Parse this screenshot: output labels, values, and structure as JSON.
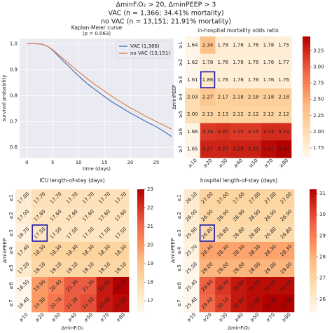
{
  "suptitle": [
    "ΔminFᵢO₂ > 20, ΔminPEEP > 3",
    "VAC (n = 1,366; 34.41% mortality)",
    "no VAC (n = 13,151; 21.91% mortality)"
  ],
  "chart_data": [
    {
      "type": "line",
      "title": "Kaplan-Meier curve",
      "subtitle": "(p = 0.063)",
      "xlabel": "time (days)",
      "ylabel": "survival probability",
      "x": [
        0,
        1,
        2,
        3,
        4,
        5,
        6,
        7,
        8,
        9,
        10,
        11,
        12,
        13,
        14,
        15,
        16,
        17,
        18,
        19,
        20,
        21,
        22,
        23,
        24,
        25,
        26,
        27,
        28
      ],
      "series": [
        {
          "name": "VAC (1,366)",
          "color": "#4c72b0",
          "values": [
            1,
            1,
            1,
            0.998,
            0.99,
            0.975,
            0.955,
            0.935,
            0.915,
            0.895,
            0.876,
            0.858,
            0.841,
            0.826,
            0.811,
            0.796,
            0.782,
            0.769,
            0.757,
            0.745,
            0.733,
            0.722,
            0.711,
            0.7,
            0.69,
            0.68,
            0.668,
            0.655,
            0.642
          ]
        },
        {
          "name": "no VAC (13,151)",
          "color": "#dd8452",
          "values": [
            1,
            1,
            1,
            0.997,
            0.99,
            0.977,
            0.96,
            0.943,
            0.926,
            0.909,
            0.892,
            0.876,
            0.86,
            0.845,
            0.831,
            0.817,
            0.803,
            0.79,
            0.777,
            0.765,
            0.753,
            0.742,
            0.731,
            0.72,
            0.71,
            0.7,
            0.69,
            0.68,
            0.67
          ]
        }
      ],
      "xlim": [
        -1.4,
        28.4
      ],
      "ylim": [
        0.56,
        1.02
      ],
      "xticks": [
        0,
        5,
        10,
        15,
        20,
        25
      ],
      "yticks": [
        0.6,
        0.7,
        0.8,
        0.9,
        {
          "value": 1,
          "label": "1.0"
        }
      ],
      "grid": true,
      "legend": "upper right"
    },
    {
      "type": "heatmap",
      "title": "in-hospital mortality odds ratio",
      "ylabel": "ΔminPEEP",
      "x_categories": [
        "≥10",
        "≥20",
        "≥30",
        "≥40",
        "≥50",
        "≥70",
        "≥80"
      ],
      "y_categories": [
        "≥1",
        "≥2",
        "≥3",
        "≥4",
        "≥5",
        "≥6",
        "≥7"
      ],
      "values": [
        [
          1.64,
          2.34,
          1.78,
          1.76,
          1.76,
          1.78,
          1.75
        ],
        [
          1.62,
          1.78,
          1.76,
          1.76,
          1.76,
          1.76,
          1.77
        ],
        [
          1.61,
          1.86,
          1.76,
          1.76,
          1.76,
          1.76,
          1.76
        ],
        [
          2.03,
          2.27,
          2.17,
          2.18,
          2.18,
          2.18,
          2.18
        ],
        [
          2,
          2.13,
          2.13,
          2.12,
          2.12,
          2.12,
          2.12
        ],
        [
          1.66,
          3.16,
          3.2,
          3.15,
          3.15,
          3.23,
          3.23
        ],
        [
          1.65,
          3.27,
          3.27,
          3.29,
          3.29,
          3.41,
          3.47
        ]
      ],
      "value_labels": [
        [
          "1.64",
          "2.34",
          "1.78",
          "1.76",
          "1.76",
          "1.78",
          "1.75"
        ],
        [
          "1.62",
          "1.78",
          "1.76",
          "1.76",
          "1.76",
          "1.76",
          "1.77"
        ],
        [
          "1.61",
          "1.86",
          "1.76",
          "1.76",
          "1.76",
          "1.76",
          "1.76"
        ],
        [
          "2.03",
          "2.27",
          "2.17",
          "2.18",
          "2.18",
          "2.18",
          "2.18"
        ],
        [
          "2.00",
          "2.13",
          "2.13",
          "2.12",
          "2.12",
          "2.12",
          "2.12"
        ],
        [
          "1.66",
          "3.16",
          "3.20",
          "3.15",
          "3.15",
          "3.23",
          "3.23"
        ],
        [
          "1.65",
          "3.27",
          "3.27",
          "3.29",
          "3.29",
          "3.41",
          "3.47"
        ]
      ],
      "clim": [
        1.6,
        3.47
      ],
      "cticks": [
        1.75,
        {
          "value": 2,
          "label": "2.00"
        },
        2.25,
        {
          "value": 2.5,
          "label": "2.50"
        },
        2.75,
        {
          "value": 3,
          "label": "3.00"
        },
        3.25
      ],
      "highlight_cell": [
        2,
        1
      ],
      "value_label_rotation": 0
    },
    {
      "type": "heatmap",
      "title": "ICU length-of-stay (days)",
      "xlabel": "ΔminFᵢO₂",
      "ylabel": "ΔminPEEP",
      "x_categories": [
        "≥10",
        "≥20",
        "≥30",
        "≥40",
        "≥50",
        "≥70",
        "≥80"
      ],
      "y_categories": [
        "≥1",
        "≥2",
        "≥3",
        "≥4",
        "≥5",
        "≥6",
        "≥7"
      ],
      "values": [
        [
          17,
          17.7,
          17.7,
          17.7,
          17.7,
          17.7,
          17.7
        ],
        [
          17,
          17.6,
          17.6,
          17.6,
          17.6,
          17.6,
          17.6
        ],
        [
          16.7,
          17.5,
          17.5,
          17.5,
          17.5,
          17.5,
          17.5
        ],
        [
          17.4,
          18.3,
          18.3,
          18.3,
          18.3,
          18.3,
          18.3
        ],
        [
          17.2,
          18.1,
          18.1,
          18.1,
          18.1,
          18.1,
          18.1
        ],
        [
          16.5,
          19.9,
          20.4,
          21.3,
          21.3,
          22.5,
          23
        ],
        [
          16.4,
          19.9,
          20.7,
          21.3,
          21.5,
          22.5,
          22.8
        ]
      ],
      "value_labels": [
        [
          "17.00",
          "17.70",
          "17.70",
          "17.70",
          "17.70",
          "17.70",
          "17.70"
        ],
        [
          "17.00",
          "17.60",
          "17.60",
          "17.60",
          "17.60",
          "17.60",
          "17.60"
        ],
        [
          "16.70",
          "17.50",
          "17.50",
          "17.50",
          "17.50",
          "17.50",
          "17.50"
        ],
        [
          "17.40",
          "18.30",
          "18.30",
          "18.30",
          "18.30",
          "18.30",
          "18.30"
        ],
        [
          "17.20",
          "18.10",
          "18.10",
          "18.10",
          "18.10",
          "18.10",
          "18.10"
        ],
        [
          "16.50",
          "19.90",
          "20.40",
          "21.30",
          "21.30",
          "22.50",
          "23.00"
        ],
        [
          "16.40",
          "19.90",
          "20.70",
          "21.30",
          "21.50",
          "22.50",
          "22.80"
        ]
      ],
      "clim": [
        16.4,
        23
      ],
      "cticks": [
        17,
        18,
        19,
        20,
        21,
        22,
        23
      ],
      "highlight_cell": [
        2,
        1
      ],
      "value_label_rotation": -45
    },
    {
      "type": "heatmap",
      "title": "hospital length-of-stay (days)",
      "xlabel": "ΔminFᵢO₂",
      "ylabel": "ΔminPEEP",
      "x_categories": [
        "≥10",
        "≥20",
        "≥30",
        "≥40",
        "≥50",
        "≥70",
        "≥80"
      ],
      "y_categories": [
        "≥1",
        "≥2",
        "≥3",
        "≥4",
        "≥5",
        "≥6",
        "≥7"
      ],
      "values": [
        [
          26.1,
          27,
          27,
          27,
          27,
          27,
          27
        ],
        [
          26,
          26.9,
          26.9,
          26.9,
          26.9,
          26.9,
          26.9
        ],
        [
          25.9,
          26.8,
          26.8,
          26.8,
          26.8,
          26.8,
          26.8
        ],
        [
          25.7,
          28.3,
          28.3,
          28.3,
          28.3,
          28.3,
          28.3
        ],
        [
          25.5,
          28,
          28,
          28,
          28,
          28,
          28
        ],
        [
          25.4,
          29.6,
          30.3,
          30.8,
          31,
          31,
          31
        ],
        [
          25.4,
          29.4,
          30.1,
          30.8,
          31,
          31.2,
          31.2
        ]
      ],
      "value_labels": [
        [
          "26.10",
          "27.00",
          "27.00",
          "27.00",
          "27.00",
          "27.00",
          "27.00"
        ],
        [
          "26.00",
          "26.90",
          "26.90",
          "26.90",
          "26.90",
          "26.90",
          "26.90"
        ],
        [
          "25.90",
          "26.80",
          "26.80",
          "26.80",
          "26.80",
          "26.80",
          "26.80"
        ],
        [
          "25.70",
          "28.30",
          "28.30",
          "28.30",
          "28.30",
          "28.30",
          "28.30"
        ],
        [
          "25.50",
          "28.00",
          "28.00",
          "28.00",
          "28.00",
          "28.00",
          "28.00"
        ],
        [
          "25.40",
          "29.60",
          "30.30",
          "30.80",
          "31.00",
          "31.00",
          "31.00"
        ],
        [
          "25.40",
          "29.40",
          "30.10",
          "30.80",
          "31.00",
          "31.20",
          "31.20"
        ]
      ],
      "clim": [
        25.4,
        31.2
      ],
      "cticks": [
        26,
        27,
        28,
        29,
        30,
        31
      ],
      "highlight_cell": [
        2,
        1
      ],
      "value_label_rotation": -45
    }
  ]
}
